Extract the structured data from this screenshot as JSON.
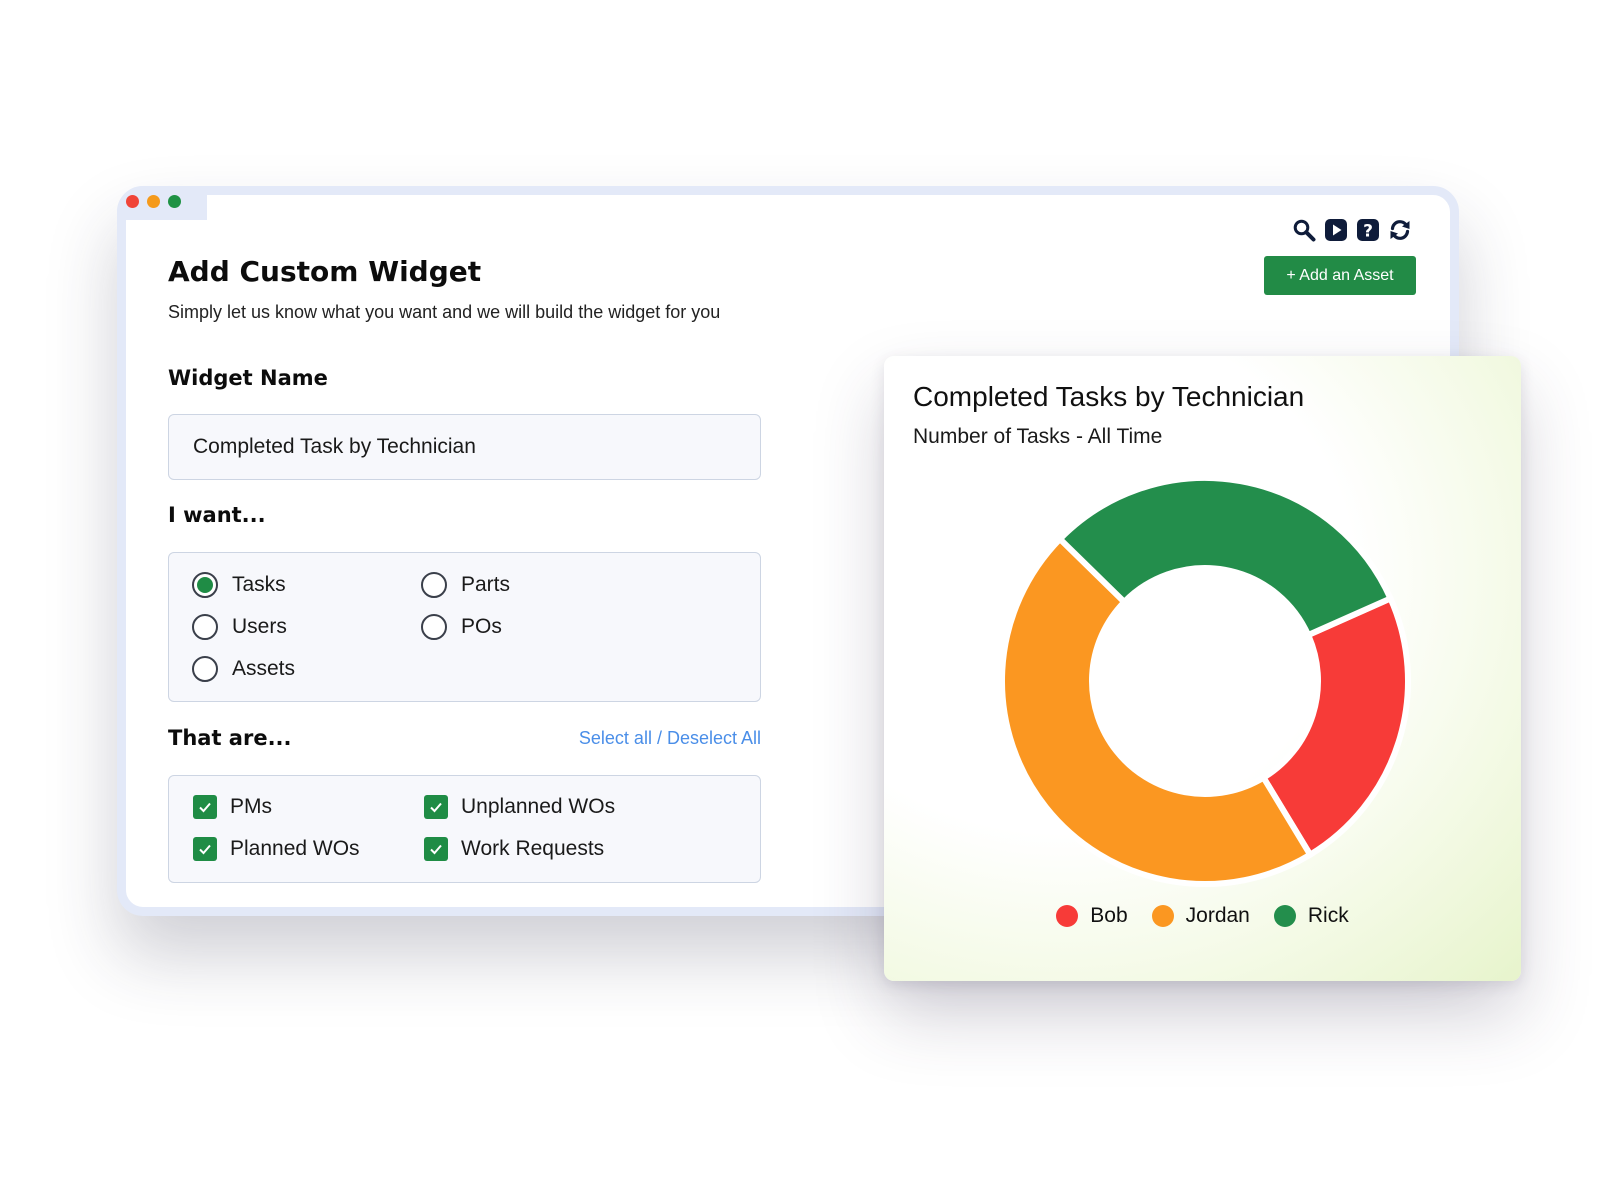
{
  "window": {
    "title": "Add Custom Widget",
    "subtitle": "Simply let us know what you want and we will build the widget for you",
    "controls": {
      "close_color": "#f04438",
      "minimize_color": "#f59a1b",
      "maximize_color": "#1f9244"
    },
    "toolbar_icons": [
      "search-icon",
      "play-icon",
      "help-icon",
      "refresh-icon"
    ],
    "add_asset_label": "+ Add an Asset"
  },
  "form": {
    "widget_name_label": "Widget Name",
    "widget_name_value": "Completed Task by Technician",
    "i_want_label": "I want...",
    "i_want_options": [
      {
        "label": "Tasks",
        "selected": true
      },
      {
        "label": "Parts",
        "selected": false
      },
      {
        "label": "Users",
        "selected": false
      },
      {
        "label": "POs",
        "selected": false
      },
      {
        "label": "Assets",
        "selected": false
      }
    ],
    "that_are_label": "That are...",
    "select_all_label": "Select all / Deselect All",
    "that_are_options": [
      {
        "label": "PMs",
        "checked": true
      },
      {
        "label": "Unplanned WOs",
        "checked": true
      },
      {
        "label": "Planned WOs",
        "checked": true
      },
      {
        "label": "Work Requests",
        "checked": true
      }
    ]
  },
  "chart_data": {
    "type": "pie",
    "title": "Completed Tasks by Technician",
    "subtitle": "Number of Tasks - All Time",
    "categories": [
      "Bob",
      "Jordan",
      "Rick"
    ],
    "values": [
      23,
      46,
      31
    ],
    "colors": [
      "#f73b38",
      "#fb9721",
      "#238e4c"
    ],
    "donut": true,
    "legend_position": "bottom"
  }
}
